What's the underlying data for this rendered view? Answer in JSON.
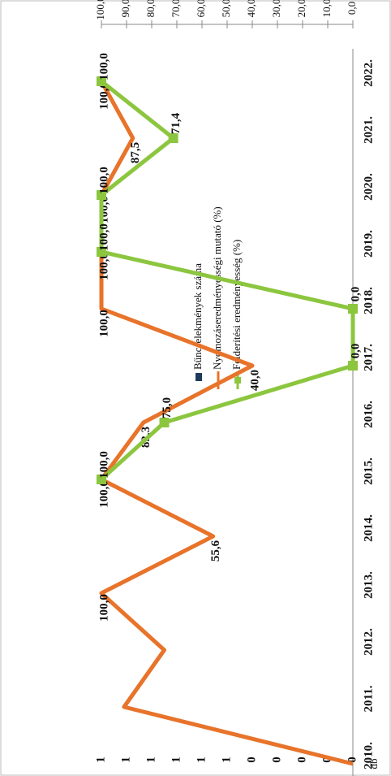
{
  "chart_data": {
    "type": "line",
    "categories": [
      "2010.",
      "2011.",
      "2012.",
      "2013.",
      "2014.",
      "2015.",
      "2016.",
      "2017.",
      "2018.",
      "2019.",
      "2020.",
      "2021.",
      "2022."
    ],
    "y_label": "db",
    "y2_label": "%",
    "ylim": [
      0,
      1
    ],
    "yticks": [
      {
        "value": 0,
        "label": "0"
      },
      {
        "value": 0.1,
        "label": "0"
      },
      {
        "value": 0.2,
        "label": "0"
      },
      {
        "value": 0.3,
        "label": "0"
      },
      {
        "value": 0.4,
        "label": "0"
      },
      {
        "value": 0.5,
        "label": "1"
      },
      {
        "value": 0.6,
        "label": "1"
      },
      {
        "value": 0.7,
        "label": "1"
      },
      {
        "value": 0.8,
        "label": "1"
      },
      {
        "value": 0.9,
        "label": "1"
      },
      {
        "value": 1,
        "label": "1"
      }
    ],
    "y2lim": [
      0,
      100
    ],
    "y2ticks": [
      {
        "value": 0,
        "label": "0,0"
      },
      {
        "value": 10,
        "label": "10,0"
      },
      {
        "value": 20,
        "label": "20,0"
      },
      {
        "value": 30,
        "label": "30,0"
      },
      {
        "value": 40,
        "label": "40,0"
      },
      {
        "value": 50,
        "label": "50,0"
      },
      {
        "value": 60,
        "label": "60,0"
      },
      {
        "value": 70,
        "label": "70,0"
      },
      {
        "value": 80,
        "label": "80,0"
      },
      {
        "value": 90,
        "label": "90,0"
      },
      {
        "value": 100,
        "label": "100,0"
      }
    ],
    "series": [
      {
        "name": "Bűncselekmények száma",
        "color": "#1f3b5c",
        "values": [
          null,
          null,
          null,
          null,
          null,
          null,
          null,
          null,
          null,
          null,
          null,
          null,
          null
        ]
      },
      {
        "name": "Nyomozáseredményességi mutató (%)",
        "color": "#e8732a",
        "axis": "y2",
        "values": [
          0,
          91,
          75,
          100,
          55.6,
          100,
          83.3,
          40.0,
          100,
          100,
          100,
          87.5,
          100
        ],
        "value_labels": [
          "0",
          null,
          null,
          "100,0",
          "55,6",
          "100,0",
          "83,3",
          "40,0",
          "100,0",
          "100,0",
          "100,0",
          "87,5",
          "100,0"
        ]
      },
      {
        "name": "Felderítési eredményesség (%)",
        "color": "#8cc63f",
        "axis": "y2",
        "values": [
          null,
          null,
          null,
          null,
          null,
          100,
          75.0,
          0,
          0,
          100,
          100,
          71.4,
          100
        ],
        "value_labels": [
          null,
          null,
          null,
          null,
          null,
          "100,0",
          "75,0",
          "0,0",
          "0,0",
          "100,0",
          "100,0",
          "71,4",
          "100,0"
        ]
      }
    ]
  }
}
